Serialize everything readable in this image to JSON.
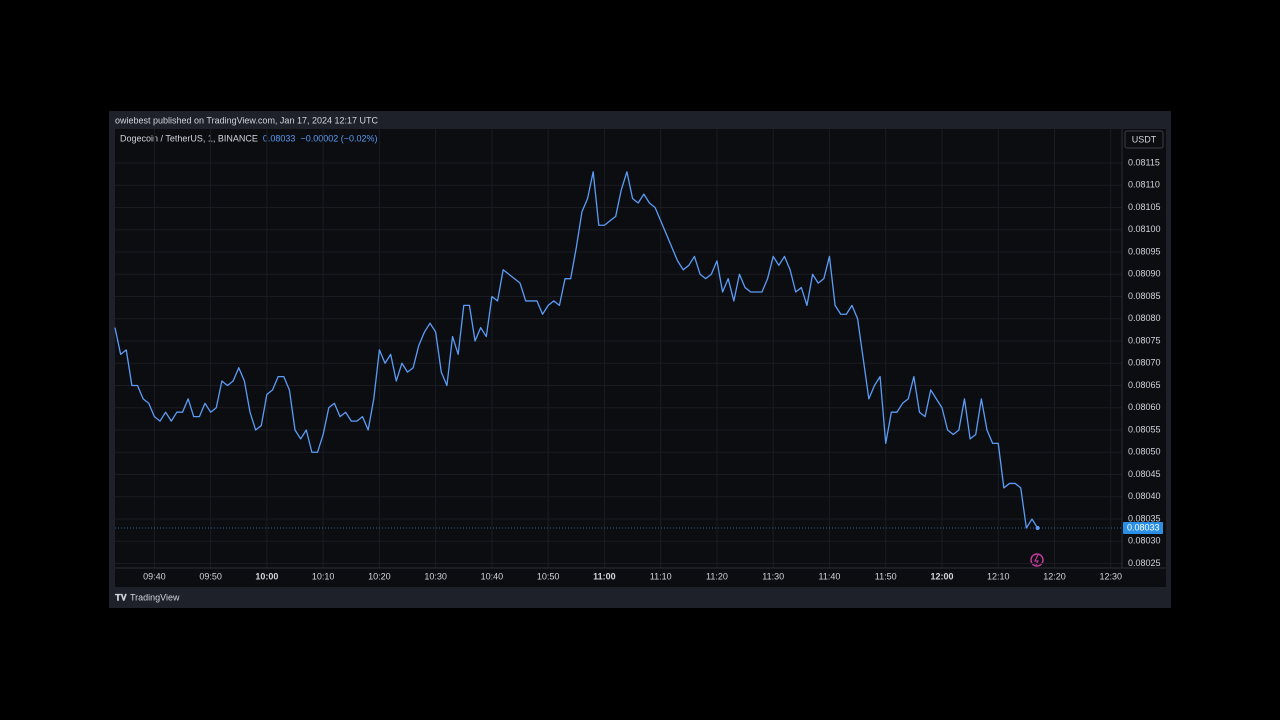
{
  "header": {
    "published": "owiebest published on TradingView.com, Jan 17, 2024 12:17 UTC",
    "change": "−0.00002 (−0.02%)",
    "currency": "USDT",
    "brand": "TradingView"
  },
  "chart_data": {
    "type": "line",
    "x": [
      "09:33",
      "09:34",
      "09:35",
      "09:36",
      "09:37",
      "09:38",
      "09:39",
      "09:40",
      "09:41",
      "09:42",
      "09:43",
      "09:44",
      "09:45",
      "09:46",
      "09:47",
      "09:48",
      "09:49",
      "09:50",
      "09:51",
      "09:52",
      "09:53",
      "09:54",
      "09:55",
      "09:56",
      "09:57",
      "09:58",
      "09:59",
      "10:00",
      "10:01",
      "10:02",
      "10:03",
      "10:04",
      "10:05",
      "10:06",
      "10:07",
      "10:08",
      "10:09",
      "10:10",
      "10:11",
      "10:12",
      "10:13",
      "10:14",
      "10:15",
      "10:16",
      "10:17",
      "10:18",
      "10:19",
      "10:20",
      "10:21",
      "10:22",
      "10:23",
      "10:24",
      "10:25",
      "10:26",
      "10:27",
      "10:28",
      "10:29",
      "10:30",
      "10:31",
      "10:32",
      "10:33",
      "10:34",
      "10:35",
      "10:36",
      "10:37",
      "10:38",
      "10:39",
      "10:40",
      "10:41",
      "10:42",
      "10:43",
      "10:44",
      "10:45",
      "10:46",
      "10:47",
      "10:48",
      "10:49",
      "10:50",
      "10:51",
      "10:52",
      "10:53",
      "10:54",
      "10:55",
      "10:56",
      "10:57",
      "10:58",
      "10:59",
      "11:00",
      "11:01",
      "11:02",
      "11:03",
      "11:04",
      "11:05",
      "11:06",
      "11:07",
      "11:08",
      "11:09",
      "11:10",
      "11:11",
      "11:12",
      "11:13",
      "11:14",
      "11:15",
      "11:16",
      "11:17",
      "11:18",
      "11:19",
      "11:20",
      "11:21",
      "11:22",
      "11:23",
      "11:24",
      "11:25",
      "11:26",
      "11:27",
      "11:28",
      "11:29",
      "11:30",
      "11:31",
      "11:32",
      "11:33",
      "11:34",
      "11:35",
      "11:36",
      "11:37",
      "11:38",
      "11:39",
      "11:40",
      "11:41",
      "11:42",
      "11:43",
      "11:44",
      "11:45",
      "11:46",
      "11:47",
      "11:48",
      "11:49",
      "11:50",
      "11:51",
      "11:52",
      "11:53",
      "11:54",
      "11:55",
      "11:56",
      "11:57",
      "11:58",
      "11:59",
      "12:00",
      "12:01",
      "12:02",
      "12:03",
      "12:04",
      "12:05",
      "12:06",
      "12:07",
      "12:08",
      "12:09",
      "12:10",
      "12:11",
      "12:12",
      "12:13",
      "12:14",
      "12:15",
      "12:16",
      "12:17"
    ],
    "series": [
      {
        "name": "Dogecoin / TetherUS, 1, BINANCE",
        "color": "#5b9cf6",
        "values": [
          0.08078,
          0.08072,
          0.08073,
          0.08065,
          0.08065,
          0.08062,
          0.08061,
          0.08058,
          0.08057,
          0.08059,
          0.08057,
          0.08059,
          0.08059,
          0.08062,
          0.08058,
          0.08058,
          0.08061,
          0.08059,
          0.0806,
          0.08066,
          0.08065,
          0.08066,
          0.08069,
          0.08066,
          0.08059,
          0.08055,
          0.08056,
          0.08063,
          0.08064,
          0.08067,
          0.08067,
          0.08064,
          0.08055,
          0.08053,
          0.08055,
          0.0805,
          0.0805,
          0.08054,
          0.0806,
          0.08061,
          0.08058,
          0.08059,
          0.08057,
          0.08057,
          0.08058,
          0.08055,
          0.08062,
          0.08073,
          0.0807,
          0.08072,
          0.08066,
          0.0807,
          0.08068,
          0.08069,
          0.08074,
          0.08077,
          0.08079,
          0.08077,
          0.08068,
          0.08065,
          0.08076,
          0.08072,
          0.08083,
          0.08083,
          0.08075,
          0.08078,
          0.08076,
          0.08085,
          0.08084,
          0.08091,
          0.0809,
          0.08089,
          0.08088,
          0.08084,
          0.08084,
          0.08084,
          0.08081,
          0.08083,
          0.08084,
          0.08083,
          0.08089,
          0.08089,
          0.08096,
          0.08104,
          0.08107,
          0.08113,
          0.08101,
          0.08101,
          0.08102,
          0.08103,
          0.08109,
          0.08113,
          0.08107,
          0.08106,
          0.08108,
          0.08106,
          0.08105,
          0.08102,
          0.08099,
          0.08096,
          0.08093,
          0.08091,
          0.08092,
          0.08094,
          0.0809,
          0.08089,
          0.0809,
          0.08093,
          0.08086,
          0.08089,
          0.08084,
          0.0809,
          0.08087,
          0.08086,
          0.08086,
          0.08086,
          0.08089,
          0.08094,
          0.08092,
          0.08094,
          0.08091,
          0.08086,
          0.08087,
          0.08083,
          0.0809,
          0.08088,
          0.08089,
          0.08094,
          0.08083,
          0.08081,
          0.08081,
          0.08083,
          0.0808,
          0.08071,
          0.08062,
          0.08065,
          0.08067,
          0.08052,
          0.08059,
          0.08059,
          0.08061,
          0.08062,
          0.08067,
          0.08059,
          0.08058,
          0.08064,
          0.08062,
          0.0806,
          0.08055,
          0.08054,
          0.08055,
          0.08062,
          0.08053,
          0.08054,
          0.08062,
          0.08055,
          0.08052,
          0.08052,
          0.08042,
          0.08043,
          0.08043,
          0.08042,
          0.08033,
          0.08035,
          0.08033
        ]
      }
    ],
    "xlim": [
      "09:33",
      "12:32"
    ],
    "xticks": [
      "09:40",
      "09:50",
      "10:00",
      "10:10",
      "10:20",
      "10:30",
      "10:40",
      "10:50",
      "11:00",
      "11:10",
      "11:20",
      "11:30",
      "11:40",
      "11:50",
      "12:00",
      "12:10",
      "12:20",
      "12:30"
    ],
    "ylim": [
      0.08024,
      0.081224
    ],
    "yticks": [
      0.08025,
      {
        "value": 0.0803,
        "label": "0.08030"
      },
      0.08035,
      {
        "value": 0.0804,
        "label": "0.08040"
      },
      0.08045,
      {
        "value": 0.0805,
        "label": "0.08050"
      },
      0.08055,
      {
        "value": 0.0806,
        "label": "0.08060"
      },
      0.08065,
      {
        "value": 0.0807,
        "label": "0.08070"
      },
      0.08075,
      {
        "value": 0.0808,
        "label": "0.08080"
      },
      0.08085,
      {
        "value": 0.0809,
        "label": "0.08090"
      },
      0.08095,
      {
        "value": 0.081,
        "label": "0.08100"
      },
      0.08105,
      {
        "value": 0.0811,
        "label": "0.08110"
      },
      0.08115
    ],
    "grid": true
  }
}
